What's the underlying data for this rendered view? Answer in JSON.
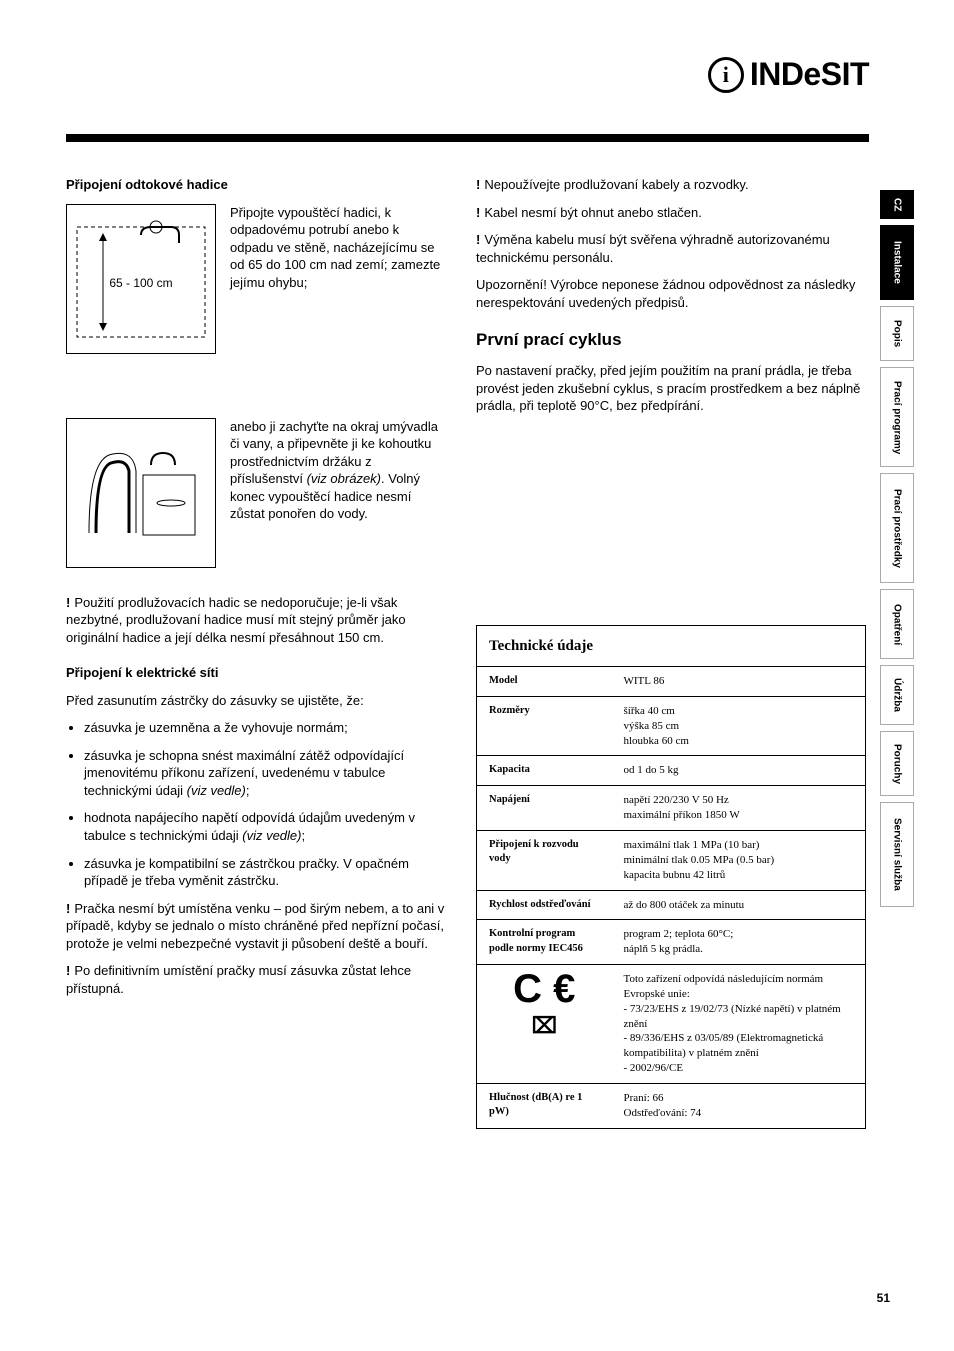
{
  "logo": {
    "icon_letter": "i",
    "brand": "INDeSIT"
  },
  "sidebar": {
    "lang": "CZ",
    "tabs": [
      "Instalace",
      "Popis",
      "Prací programy",
      "Prací prostředky",
      "Opatření",
      "Údržba",
      "Poruchy",
      "Servisní služba"
    ]
  },
  "left": {
    "h_drain": "Připojení odtokové hadice",
    "fig1_label": "65 - 100 cm",
    "p_drain1": "Připojte vypouštěcí hadici, k odpadovému potrubí anebo k odpadu ve stěně, nacházejícímu se od 65 do 100 cm nad zemí; zamezte jejímu ohybu;",
    "p_drain2_a": "anebo ji zachyťte na okraj umývadla či vany, a připevněte ji ke kohoutku prostřednictvím držáku z příslušenství ",
    "p_drain2_em": "(viz obrázek)",
    "p_drain2_b": ". Volný konec vypouštěcí hadice nesmí zůstat ponořen do vody.",
    "p_ext": "Použití prodlužovacích hadic se nedoporučuje; je-li však nezbytné, prodlužovaní hadice musí mít stejný průměr jako originální hadice a její délka nesmí přesáhnout 150 cm.",
    "h_elec": "Připojení k elektrické síti",
    "p_elec_intro": "Před zasunutím zástrčky do zásuvky se ujistěte, že:",
    "li1": "zásuvka je uzemněna a že vyhovuje normám;",
    "li2_a": "zásuvka je schopna snést maximální zátěž odpovídající jmenovitému příkonu zařízení, uvedenému v tabulce technickými údaji ",
    "li2_em": "(viz vedle)",
    "li3_a": "hodnota napájecího napětí odpovídá údajům uvedeným v tabulce s technickými údaji ",
    "li3_em": "(viz vedle)",
    "li4": "zásuvka je kompatibilní se zástrčkou pračky. V opačném případě je třeba vyměnit zástrčku.",
    "p_warn_out": "Pračka nesmí být umístěna venku – pod širým nebem, a to ani v případě, kdyby se jednalo o místo chráněné před nepřízní počasí, protože je velmi nebezpečné vystavit ji působení deště a bouří.",
    "p_warn_acc": "Po definitivním umístění pračky musí zásuvka zůstat lehce přístupná."
  },
  "right": {
    "w1": "Nepoužívejte prodlužovaní kabely a rozvodky.",
    "w2": "Kabel nesmí být ohnut anebo stlačen.",
    "w3": "Výměna kabelu musí být svěřena výhradně autorizovanému technickému personálu.",
    "p_note": "Upozornění! Výrobce neponese žádnou odpovědnost za následky nerespektování uvedených předpisů.",
    "h_first": "První prací cyklus",
    "p_first": "Po nastavení pračky, před jejím použitím na praní prádla, je třeba provést jeden zkušební cyklus, s pracím prostředkem a bez náplně prádla, při teplotě 90°C, bez předpírání."
  },
  "table": {
    "title": "Technické údaje",
    "rows": [
      {
        "k": "Model",
        "v": "WITL 86"
      },
      {
        "k": "Rozměry",
        "v": "šířka    40 cm\nvýška   85 cm\nhloubka 60 cm"
      },
      {
        "k": "Kapacita",
        "v": "od 1 do 5 kg"
      },
      {
        "k": "Napájení",
        "v": "napětí 220/230 V 50 Hz\nmaximální příkon 1850 W"
      },
      {
        "k": "Připojení k rozvodu vody",
        "v": "maximální tlak 1 MPa (10 bar)\nminimální tlak 0.05 MPa (0.5 bar)\nkapacita bubnu 42 litrů"
      },
      {
        "k": "Rychlost odstřeďování",
        "v": "až do 800 otáček za minutu"
      },
      {
        "k": "Kontrolní program podle normy IEC456",
        "v": "program 2; teplota 60°C;\nnáplň 5 kg prádla."
      },
      {
        "k": "__CE__",
        "v": "Toto zařízení odpovídá následujícím normám Evropské unie:\n- 73/23/EHS z 19/02/73 (Nízké napětí) v platném znění\n- 89/336/EHS z 03/05/89 (Elektromagnetická kompatibilita) v platném znění\n- 2002/96/CE"
      },
      {
        "k": "Hlučnost (dB(A) re 1 pW)",
        "v": "Praní: 66\nOdstřeďování: 74"
      }
    ]
  },
  "page_number": "51"
}
